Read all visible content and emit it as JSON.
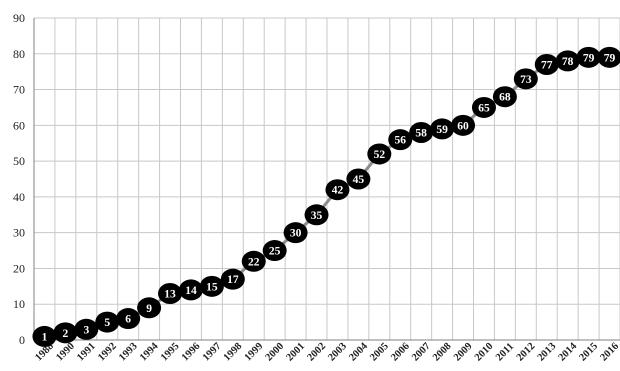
{
  "chart_data": {
    "type": "line",
    "title": "",
    "xlabel": "",
    "ylabel": "",
    "x": [
      "1988",
      "1990",
      "1991",
      "1992",
      "1993",
      "1994",
      "1995",
      "1996",
      "1997",
      "1998",
      "1999",
      "2000",
      "2001",
      "2002",
      "2003",
      "2004",
      "2005",
      "2006",
      "2007",
      "2008",
      "2009",
      "2010",
      "2011",
      "2012",
      "2013",
      "2014",
      "2015",
      "2016"
    ],
    "series": [
      {
        "values": [
          1,
          2,
          3,
          5,
          6,
          9,
          13,
          14,
          15,
          17,
          22,
          25,
          30,
          35,
          42,
          45,
          52,
          56,
          58,
          59,
          60,
          65,
          68,
          73,
          77,
          78,
          79,
          79
        ]
      }
    ],
    "ylim": [
      0,
      90
    ],
    "yticks": [
      0,
      10,
      20,
      30,
      40,
      50,
      60,
      70,
      80,
      90
    ],
    "grid": true,
    "legend": "none",
    "data_labels": true,
    "colors": {
      "marker": "#000000",
      "line": "#8c8c8c",
      "label": "#ffffff",
      "grid": "#c8c8c8"
    }
  }
}
